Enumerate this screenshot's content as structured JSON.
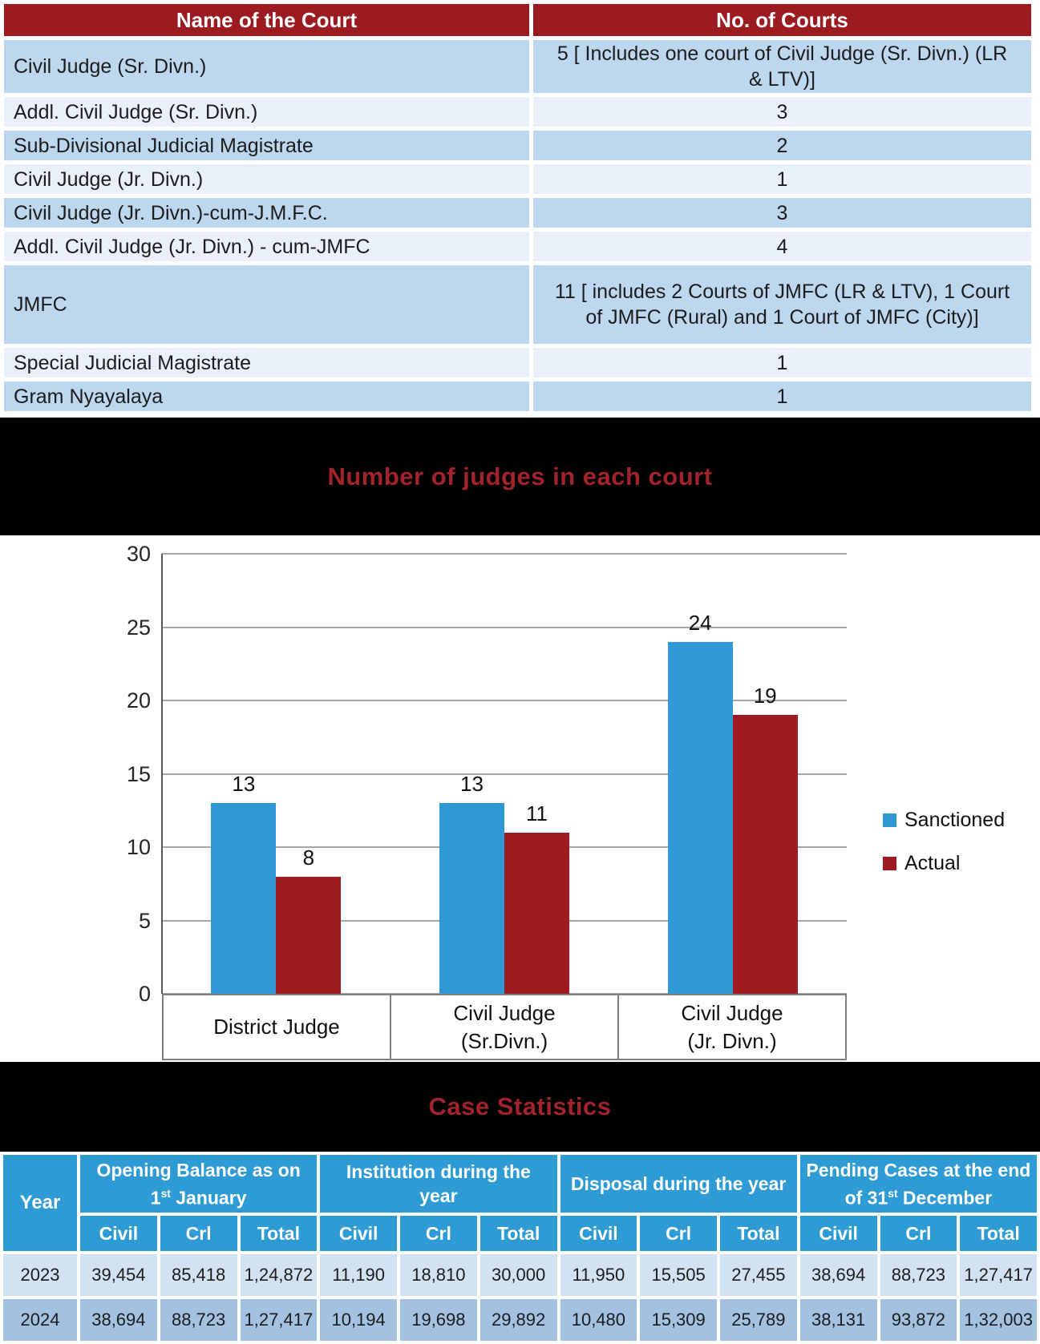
{
  "colors": {
    "table_header_red": "#9C1B21",
    "banner_background": "#000000",
    "banner_title_red": "#A2232B",
    "court_row_dark_blue": "#BDD7EE",
    "court_row_light_blue": "#E9F0F9",
    "chart_blue": "#2E99D5",
    "chart_dark_red": "#9E1B21",
    "gridline_gray": "#A6A6A6",
    "case_header_blue": "#2E9BD5",
    "case_row_2023": "#D3E2F2",
    "case_row_2024": "#A3C1E1"
  },
  "court_table": {
    "headers": [
      "Name of the Court",
      "No. of Courts"
    ],
    "rows": [
      {
        "name": "Civil Judge (Sr. Divn.)",
        "count": "5 [ Includes one court of Civil Judge (Sr. Divn.) (LR & LTV)]"
      },
      {
        "name": "Addl. Civil Judge (Sr. Divn.)",
        "count": "3"
      },
      {
        "name": "Sub-Divisional Judicial Magistrate",
        "count": "2"
      },
      {
        "name": "Civil Judge (Jr. Divn.)",
        "count": "1"
      },
      {
        "name": "Civil Judge (Jr. Divn.)-cum-J.M.F.C.",
        "count": "3"
      },
      {
        "name": "Addl. Civil Judge (Jr. Divn.) - cum-JMFC",
        "count": "4"
      },
      {
        "name": "JMFC",
        "count": "11 [ includes 2 Courts of JMFC (LR & LTV), 1 Court of JMFC (Rural) and 1 Court of JMFC (City)]"
      },
      {
        "name": "Special Judicial Magistrate",
        "count": "1"
      },
      {
        "name": "Gram Nyayalaya",
        "count": "1"
      }
    ]
  },
  "chart_section": {
    "title": "Number of judges in each court"
  },
  "chart_data": {
    "type": "bar",
    "title": "Number of judges in each court",
    "categories": [
      "District Judge",
      "Civil Judge (Sr.Divn.)",
      "Civil Judge (Jr. Divn.)"
    ],
    "category_lines": [
      [
        "District Judge"
      ],
      [
        "Civil Judge",
        "(Sr.Divn.)"
      ],
      [
        "Civil Judge",
        "(Jr. Divn.)"
      ]
    ],
    "series": [
      {
        "name": "Sanctioned",
        "color": "#2E99D5",
        "values": [
          13,
          13,
          24
        ]
      },
      {
        "name": "Actual",
        "color": "#9E1B21",
        "values": [
          8,
          11,
          19
        ]
      }
    ],
    "ylim": [
      0,
      30
    ],
    "ytick_step": 5,
    "yticks": [
      0,
      5,
      10,
      15,
      20,
      25,
      30
    ],
    "grid": true,
    "data_labels": true,
    "legend_position": "right"
  },
  "stats_section": {
    "title": "Case Statistics"
  },
  "case_table": {
    "year_header": "Year",
    "groups": [
      {
        "pre": "Opening Balance as on 1",
        "sup": "st",
        "post": " January"
      },
      {
        "pre": "Institution during the year",
        "sup": "",
        "post": ""
      },
      {
        "pre": "Disposal during the year",
        "sup": "",
        "post": ""
      },
      {
        "pre": "Pending Cases at the end of 31",
        "sup": "st",
        "post": " December"
      }
    ],
    "sub_headers": [
      "Civil",
      "Crl",
      "Total"
    ],
    "rows": [
      {
        "year": "2023",
        "values": [
          "39,454",
          "85,418",
          "1,24,872",
          "11,190",
          "18,810",
          "30,000",
          "11,950",
          "15,505",
          "27,455",
          "38,694",
          "88,723",
          "1,27,417"
        ]
      },
      {
        "year": "2024",
        "values": [
          "38,694",
          "88,723",
          "1,27,417",
          "10,194",
          "19,698",
          "29,892",
          "10,480",
          "15,309",
          "25,789",
          "38,131",
          "93,872",
          "1,32,003"
        ]
      }
    ]
  }
}
